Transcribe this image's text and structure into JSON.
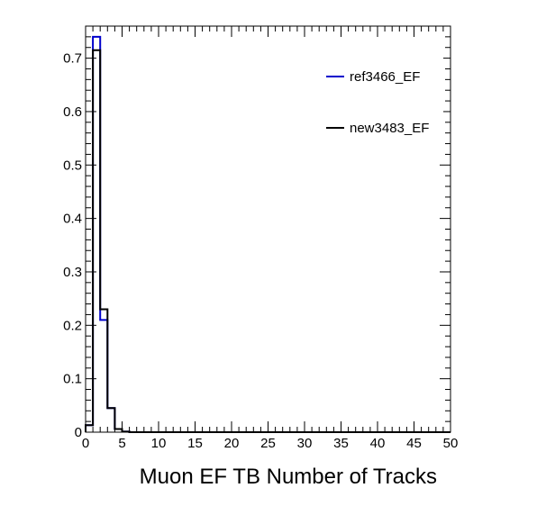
{
  "chart_data": {
    "type": "histogram",
    "title": "",
    "xlabel": "Muon EF TB Number of Tracks",
    "ylabel": "",
    "xlim": [
      0,
      50
    ],
    "ylim": [
      0,
      0.76
    ],
    "bin_width": 1,
    "x_ticks": [
      0,
      5,
      10,
      15,
      20,
      25,
      30,
      35,
      40,
      45,
      50
    ],
    "y_ticks": [
      0,
      0.1,
      0.2,
      0.3,
      0.4,
      0.5,
      0.6,
      0.7
    ],
    "y_tick_labels": [
      "0",
      "0.1",
      "0.2",
      "0.3",
      "0.4",
      "0.5",
      "0.6",
      "0.7"
    ],
    "grid": false,
    "legend_placement": "top-right",
    "series": [
      {
        "name": "ref3466_EF",
        "color": "#0000cc",
        "values": [
          0.013,
          0.74,
          0.21,
          0.045,
          0.006,
          0.001,
          0,
          0,
          0,
          0,
          0,
          0,
          0,
          0,
          0,
          0,
          0,
          0,
          0,
          0,
          0,
          0,
          0,
          0,
          0,
          0,
          0,
          0,
          0,
          0,
          0,
          0,
          0,
          0,
          0,
          0,
          0,
          0,
          0,
          0,
          0,
          0,
          0,
          0,
          0,
          0,
          0,
          0,
          0,
          0
        ]
      },
      {
        "name": "new3483_EF",
        "color": "#000000",
        "values": [
          0.013,
          0.715,
          0.23,
          0.045,
          0.006,
          0.001,
          0,
          0,
          0,
          0,
          0,
          0,
          0,
          0,
          0,
          0,
          0,
          0,
          0,
          0,
          0,
          0,
          0,
          0,
          0,
          0,
          0,
          0,
          0,
          0,
          0,
          0,
          0,
          0,
          0,
          0,
          0,
          0,
          0,
          0,
          0,
          0,
          0,
          0,
          0,
          0,
          0,
          0,
          0,
          0
        ]
      }
    ]
  }
}
